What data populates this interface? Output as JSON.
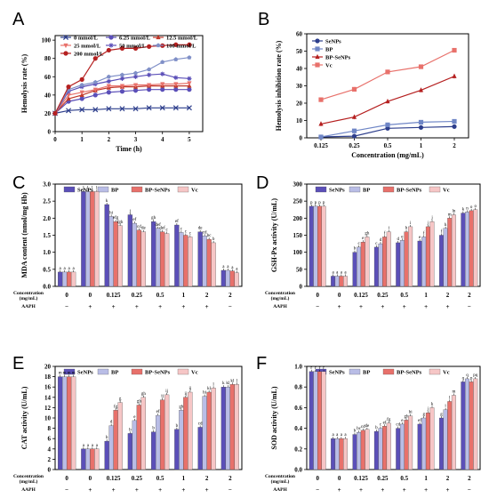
{
  "colors": {
    "purple": "#5b4fb8",
    "red": "#c0392b",
    "light_purple": "#b9bde6",
    "salmon": "#e8716b",
    "pink": "#f6c6c6",
    "navy": "#2d3e8c",
    "dark_red": "#b52020",
    "blue_gray": "#7f8fc7",
    "steel": "#6f86c6"
  },
  "chart_data": [
    {
      "panel": "A",
      "type": "line",
      "xlabel": "Time (h)",
      "ylabel": "Hemolysis rate (%)",
      "xlim": [
        0,
        5.5
      ],
      "ylim": [
        0,
        105
      ],
      "xticks": [
        "0",
        "1",
        "2",
        "3",
        "4",
        "5"
      ],
      "yticks": [
        "0",
        "20",
        "40",
        "60",
        "80",
        "100"
      ],
      "legend_position": "top-left",
      "x": [
        0,
        0.5,
        1,
        1.5,
        2,
        2.5,
        3,
        3.5,
        4,
        4.5,
        5
      ],
      "series": [
        {
          "name": "0 mmol/L",
          "color": "#2d3e8c",
          "marker": "x",
          "values": [
            20,
            23,
            24,
            24,
            25,
            25,
            25,
            26,
            26,
            26,
            26
          ]
        },
        {
          "name": "6.25 mmol/L",
          "color": "#5b4fb8",
          "marker": "circle",
          "values": [
            20,
            33,
            36,
            40,
            43,
            44,
            45,
            46,
            46,
            46,
            46
          ]
        },
        {
          "name": "12.5 mmol/L",
          "color": "#c0392b",
          "marker": "triangle",
          "values": [
            20,
            36,
            40,
            45,
            48,
            49,
            49,
            50,
            50,
            50,
            50
          ]
        },
        {
          "name": "25 mmol/L",
          "color": "#e8716b",
          "marker": "triangle-down",
          "values": [
            20,
            40,
            43,
            46,
            50,
            50,
            51,
            51,
            52,
            52,
            53
          ]
        },
        {
          "name": "50 mmol/L",
          "color": "#5b4fb8",
          "marker": "star",
          "values": [
            20,
            44,
            49,
            52,
            55,
            58,
            60,
            62,
            63,
            59,
            58
          ]
        },
        {
          "name": "100 mmol/L",
          "color": "#7f8fc7",
          "marker": "pentagon",
          "values": [
            20,
            46,
            51,
            54,
            60,
            62,
            64,
            68,
            76,
            79,
            81
          ]
        },
        {
          "name": "200 mmol/L",
          "color": "#b52020",
          "marker": "circle",
          "values": [
            20,
            49,
            57,
            80,
            89,
            91,
            91,
            93,
            94,
            95,
            95
          ]
        }
      ]
    },
    {
      "panel": "B",
      "type": "line",
      "xlabel": "Concentration (mg/mL)",
      "ylabel": "Hemolysis inhibition rate (%)",
      "categories": [
        "0.125",
        "0.25",
        "0.5",
        "1",
        "2"
      ],
      "ylim": [
        0,
        60
      ],
      "yticks": [
        "0",
        "10",
        "20",
        "30",
        "40",
        "50",
        "60"
      ],
      "legend_position": "top-left",
      "series": [
        {
          "name": "SeNPs",
          "color": "#2d3e8c",
          "marker": "circle",
          "values": [
            0.5,
            1,
            5.5,
            6,
            6.5
          ]
        },
        {
          "name": "BP",
          "color": "#6f86c6",
          "marker": "square",
          "values": [
            0.5,
            4,
            7.5,
            9,
            9.5
          ]
        },
        {
          "name": "BP-SeNPs",
          "color": "#b52020",
          "marker": "triangle",
          "values": [
            8,
            12,
            21,
            27.5,
            35.5
          ]
        },
        {
          "name": "Vc",
          "color": "#e8716b",
          "marker": "square",
          "values": [
            22,
            28,
            38,
            41,
            50.5
          ]
        }
      ]
    },
    {
      "panel": "C",
      "type": "bar",
      "ylabel": "MDA content (nmol/mg Hb)",
      "ylim": [
        0,
        3.0
      ],
      "yticks": [
        "0.0",
        "0.5",
        "1.0",
        "1.5",
        "2.0",
        "2.5",
        "3.0"
      ],
      "legend_position": "top",
      "concentration_label": "Concentration (mg/mL)",
      "aaph_label": "AAPH",
      "categories": [
        "0",
        "0",
        "0.125",
        "0.25",
        "0.5",
        "1",
        "2",
        "2"
      ],
      "aaph": [
        "−",
        "+",
        "+",
        "+",
        "+",
        "+",
        "+",
        "−"
      ],
      "series": [
        {
          "name": "SeNPs",
          "values": [
            0.42,
            2.78,
            2.4,
            2.1,
            1.9,
            1.8,
            1.6,
            0.47
          ],
          "letters": [
            "a",
            "l",
            "k",
            "j",
            "gh",
            "ef",
            "de",
            "a"
          ]
        },
        {
          "name": "BP",
          "values": [
            0.42,
            2.78,
            2.05,
            1.85,
            1.7,
            1.58,
            1.48,
            0.47
          ],
          "letters": [
            "a",
            "l",
            "hi",
            "ef",
            "def",
            "c",
            "cd",
            "a"
          ]
        },
        {
          "name": "BP-SeNPs",
          "values": [
            0.42,
            2.78,
            1.9,
            1.65,
            1.6,
            1.5,
            1.38,
            0.45
          ],
          "letters": [
            "a",
            "l",
            "efg",
            "cd",
            "def",
            "c",
            "bc",
            "a"
          ]
        },
        {
          "name": "Vc",
          "values": [
            0.42,
            2.78,
            1.78,
            1.6,
            1.55,
            1.45,
            1.28,
            0.4
          ],
          "letters": [
            "a",
            "l",
            "fgh",
            "de",
            "c",
            "c",
            "b",
            "a"
          ]
        }
      ]
    },
    {
      "panel": "D",
      "type": "bar",
      "ylabel": "GSH-Px activity (U/mL)",
      "ylim": [
        0,
        300
      ],
      "yticks": [
        "0",
        "50",
        "100",
        "150",
        "200",
        "250",
        "300"
      ],
      "legend_position": "top",
      "concentration_label": "Concentration (mg/mL)",
      "aaph_label": "AAPH",
      "categories": [
        "0",
        "0",
        "0.125",
        "0.25",
        "0.5",
        "1",
        "2",
        "2"
      ],
      "aaph": [
        "−",
        "+",
        "+",
        "+",
        "+",
        "+",
        "+",
        "−"
      ],
      "series": [
        {
          "name": "SeNPs",
          "values": [
            235,
            30,
            100,
            115,
            128,
            133,
            150,
            215
          ],
          "letters": [
            "p",
            "a",
            "b",
            "c",
            "d",
            "e",
            "f",
            "k"
          ]
        },
        {
          "name": "BP",
          "values": [
            235,
            30,
            115,
            125,
            135,
            145,
            170,
            218
          ],
          "letters": [
            "p",
            "a",
            "c",
            "d",
            "e",
            "f",
            "h",
            "n"
          ]
        },
        {
          "name": "BP-SeNPs",
          "values": [
            235,
            30,
            130,
            145,
            160,
            175,
            200,
            222
          ],
          "letters": [
            "p",
            "a",
            "e",
            "f",
            "h",
            "j",
            "m",
            "o"
          ]
        },
        {
          "name": "Vc",
          "values": [
            235,
            30,
            145,
            160,
            175,
            190,
            210,
            225
          ],
          "letters": [
            "p",
            "a",
            "gh",
            "i",
            "i",
            "j",
            "ln",
            "o"
          ]
        }
      ]
    },
    {
      "panel": "E",
      "type": "bar",
      "ylabel": "CAT activity (U/mL)",
      "ylim": [
        0,
        20
      ],
      "yticks": [
        "0",
        "2",
        "4",
        "6",
        "8",
        "10",
        "12",
        "14",
        "16",
        "18",
        "20"
      ],
      "legend_position": "top",
      "concentration_label": "Concentration (mg/mL)",
      "aaph_label": "AAPH",
      "categories": [
        "0",
        "0",
        "0.125",
        "0.25",
        "0.5",
        "1",
        "2",
        "2"
      ],
      "aaph": [
        "−",
        "+",
        "+",
        "+",
        "+",
        "+",
        "+",
        "−"
      ],
      "series": [
        {
          "name": "SeNPs",
          "values": [
            18,
            4,
            5.5,
            7,
            7.3,
            7.8,
            8.2,
            16
          ],
          "letters": [
            "m",
            "a",
            "b",
            "b",
            "b",
            "b",
            "cd",
            "k"
          ]
        },
        {
          "name": "BP",
          "values": [
            18,
            4,
            8.5,
            9.5,
            10.5,
            11.5,
            14.2,
            16
          ],
          "letters": [
            "m",
            "a",
            "d",
            "e",
            "ef",
            "gh",
            "hi",
            "kl"
          ]
        },
        {
          "name": "BP-SeNPs",
          "values": [
            18,
            4,
            11.5,
            12.5,
            13.5,
            14,
            15,
            16.5
          ],
          "letters": [
            "m",
            "a",
            "fg",
            "gh",
            "ij",
            "ij",
            "kl",
            "kl"
          ]
        },
        {
          "name": "Vc",
          "values": [
            18,
            4,
            13,
            14,
            14.5,
            15,
            15.8,
            16.5
          ],
          "letters": [
            "m",
            "a",
            "g",
            "gh",
            "ij",
            "ij",
            "l",
            "l"
          ]
        }
      ]
    },
    {
      "panel": "F",
      "type": "bar",
      "ylabel": "SOD activity (U/mL)",
      "ylim": [
        0,
        1.0
      ],
      "yticks": [
        "0.0",
        "0.2",
        "0.4",
        "0.6",
        "0.8",
        "1.0"
      ],
      "legend_position": "top",
      "concentration_label": "Concentration (mg/mL)",
      "aaph_label": "AAPH",
      "categories": [
        "0",
        "0",
        "0.125",
        "0.25",
        "0.5",
        "1",
        "2",
        "2"
      ],
      "aaph": [
        "−",
        "+",
        "+",
        "+",
        "+",
        "+",
        "+",
        "−"
      ],
      "series": [
        {
          "name": "SeNPs",
          "values": [
            0.95,
            0.3,
            0.34,
            0.37,
            0.4,
            0.44,
            0.5,
            0.85
          ],
          "letters": [
            "r",
            "a",
            "b",
            "b",
            "cd",
            "ef",
            "g",
            "q"
          ]
        },
        {
          "name": "BP",
          "values": [
            0.95,
            0.3,
            0.36,
            0.4,
            0.44,
            0.5,
            0.58,
            0.88
          ],
          "letters": [
            "r",
            "a",
            "bc",
            "c",
            "e",
            "g",
            "i",
            "q"
          ]
        },
        {
          "name": "BP-SeNPs",
          "values": [
            0.95,
            0.3,
            0.38,
            0.42,
            0.48,
            0.55,
            0.66,
            0.85
          ],
          "letters": [
            "r",
            "a",
            "cd",
            "ef",
            "gh",
            "j",
            "l",
            "p"
          ]
        },
        {
          "name": "Vc",
          "values": [
            0.95,
            0.3,
            0.39,
            0.45,
            0.52,
            0.6,
            0.72,
            0.88
          ],
          "letters": [
            "r",
            "a",
            "de",
            "fg",
            "hi",
            "k",
            "m",
            "pq"
          ]
        }
      ]
    }
  ]
}
